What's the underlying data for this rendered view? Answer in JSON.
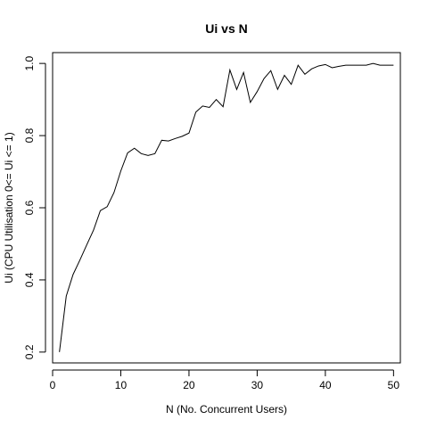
{
  "chart_data": {
    "type": "line",
    "title": "Ui vs N",
    "xlabel": "N (No. Concurrent Users)",
    "ylabel": "Ui (CPU Utilisation 0<= Ui <= 1)",
    "xlim": [
      0,
      51
    ],
    "ylim": [
      0.17,
      1.03
    ],
    "xticks": [
      0,
      10,
      20,
      30,
      40,
      50
    ],
    "yticks": [
      0.2,
      0.4,
      0.6,
      0.8,
      1.0
    ],
    "xtick_labels": [
      "0",
      "10",
      "20",
      "30",
      "40",
      "50"
    ],
    "ytick_labels": [
      "0.2",
      "0.4",
      "0.6",
      "0.8",
      "1.0"
    ],
    "grid": false,
    "series": [
      {
        "x": [
          1,
          2,
          3,
          4,
          5,
          6,
          7,
          8,
          9,
          10,
          11,
          12,
          13,
          14,
          15,
          16,
          17,
          18,
          19,
          20,
          21,
          22,
          23,
          24,
          25,
          26,
          27,
          28,
          29,
          30,
          31,
          32,
          33,
          34,
          35,
          36,
          37,
          38,
          39,
          40,
          41,
          42,
          43,
          44,
          45,
          46,
          47,
          48,
          49,
          50
        ],
        "y": [
          0.2,
          0.355,
          0.415,
          0.455,
          0.497,
          0.538,
          0.592,
          0.603,
          0.642,
          0.702,
          0.752,
          0.765,
          0.75,
          0.745,
          0.75,
          0.787,
          0.785,
          0.792,
          0.798,
          0.807,
          0.865,
          0.882,
          0.878,
          0.9,
          0.88,
          0.982,
          0.928,
          0.975,
          0.892,
          0.922,
          0.958,
          0.98,
          0.928,
          0.967,
          0.942,
          0.995,
          0.97,
          0.985,
          0.993,
          0.997,
          0.988,
          0.992,
          0.995,
          0.995,
          0.995,
          0.995,
          1.0,
          0.995,
          0.995,
          0.995
        ]
      }
    ]
  }
}
